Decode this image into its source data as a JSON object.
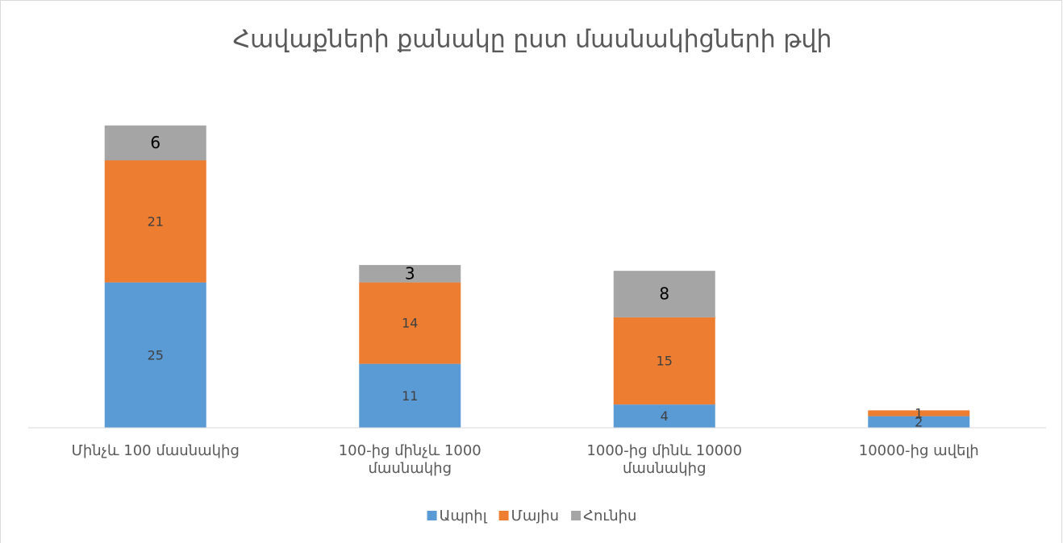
{
  "chart_data": {
    "type": "stacked_bar",
    "title": "Հավաքների քանակը ըստ մասնակիցների թվի",
    "categories": [
      "Մինչև 100 մասնակից",
      "100-ից մինչև 1000 մասնակից",
      "1000-ից մինև 10000 մասնակից",
      "10000-ից ավելի"
    ],
    "series": [
      {
        "name": "Ապրիլ",
        "color": "#5b9bd5",
        "values": [
          25,
          11,
          4,
          2
        ]
      },
      {
        "name": "Մայիս",
        "color": "#ed7d31",
        "values": [
          21,
          14,
          15,
          1
        ]
      },
      {
        "name": "Հունիս",
        "color": "#a5a5a5",
        "values": [
          6,
          3,
          8,
          null
        ]
      }
    ],
    "ylim": [
      0,
      60
    ],
    "grid": false,
    "legend": "bottom"
  }
}
